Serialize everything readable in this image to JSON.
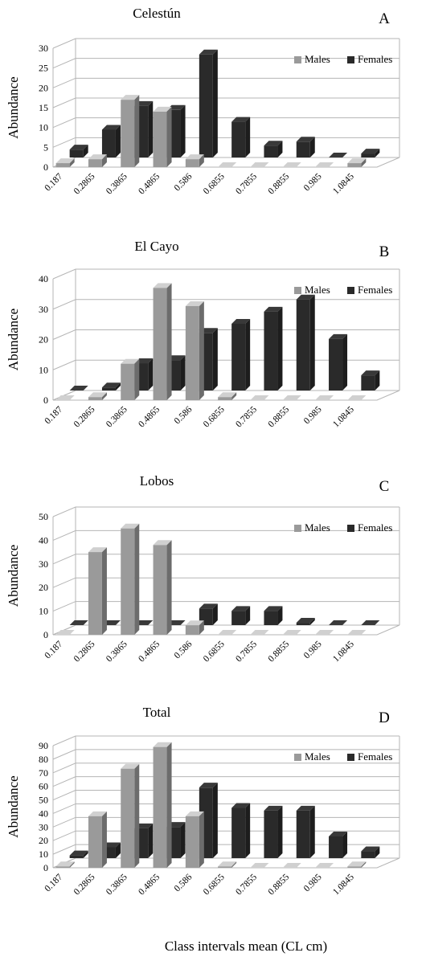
{
  "colors": {
    "males": "#9a9a9a",
    "females": "#2a2a2a",
    "grid": "#b5b5b5"
  },
  "xlabel": "Class intervals mean (CL cm)",
  "chart_data": [
    {
      "type": "bar",
      "title": "Celestún",
      "panel": "A",
      "ylabel": "Abundance",
      "categories": [
        "0.187",
        "0.2865",
        "0.3865",
        "0.4865",
        "0.586",
        "0.6855",
        "0.7855",
        "0.8855",
        "0.985",
        "1.0845"
      ],
      "ylim": [
        0,
        30
      ],
      "yticks": [
        0,
        5,
        10,
        15,
        20,
        25,
        30
      ],
      "legend": "top-right",
      "series": [
        {
          "name": "Males",
          "values": [
            1,
            2,
            17,
            14,
            2,
            0,
            0,
            0,
            0,
            1
          ]
        },
        {
          "name": "Females",
          "values": [
            2,
            7,
            13,
            12,
            26,
            9,
            3,
            4,
            0,
            1
          ]
        }
      ]
    },
    {
      "type": "bar",
      "title": "El Cayo",
      "panel": "B",
      "ylabel": "Abundance",
      "categories": [
        "0.187",
        "0.2865",
        "0.3865",
        "0.4865",
        "0.586",
        "0.6855",
        "0.7855",
        "0.8855",
        "0.985",
        "1.0845"
      ],
      "ylim": [
        0,
        40
      ],
      "yticks": [
        0,
        10,
        20,
        30,
        40
      ],
      "legend": "top-right",
      "series": [
        {
          "name": "Males",
          "values": [
            0,
            1,
            12,
            37,
            31,
            1,
            0,
            0,
            0,
            0
          ]
        },
        {
          "name": "Females",
          "values": [
            0,
            1,
            9,
            10,
            19,
            22,
            26,
            30,
            17,
            5
          ]
        }
      ]
    },
    {
      "type": "bar",
      "title": "Lobos",
      "panel": "C",
      "ylabel": "Abundance",
      "categories": [
        "0.187",
        "0.2865",
        "0.3865",
        "0.4865",
        "0.586",
        "0.6855",
        "0.7855",
        "0.8855",
        "0.985",
        "1.0845"
      ],
      "ylim": [
        0,
        50
      ],
      "yticks": [
        0,
        10,
        20,
        30,
        40,
        50
      ],
      "legend": "top-right",
      "series": [
        {
          "name": "Males",
          "values": [
            0,
            35,
            45,
            38,
            4,
            0,
            0,
            0,
            0,
            0
          ]
        },
        {
          "name": "Females",
          "values": [
            0,
            0,
            0,
            0,
            7,
            6,
            6,
            1,
            0,
            0
          ]
        }
      ]
    },
    {
      "type": "bar",
      "title": "Total",
      "panel": "D",
      "ylabel": "Abundance",
      "categories": [
        "0.187",
        "0.2865",
        "0.3865",
        "0.4865",
        "0.586",
        "0.6855",
        "0.7855",
        "0.8855",
        "0.985",
        "1.0845"
      ],
      "ylim": [
        0,
        90
      ],
      "yticks": [
        0,
        10,
        20,
        30,
        40,
        50,
        60,
        70,
        80,
        90
      ],
      "legend": "top-right",
      "series": [
        {
          "name": "Males",
          "values": [
            1,
            38,
            73,
            89,
            38,
            1,
            0,
            0,
            0,
            1
          ]
        },
        {
          "name": "Females",
          "values": [
            2,
            8,
            22,
            23,
            52,
            37,
            35,
            35,
            16,
            5
          ]
        }
      ]
    }
  ]
}
